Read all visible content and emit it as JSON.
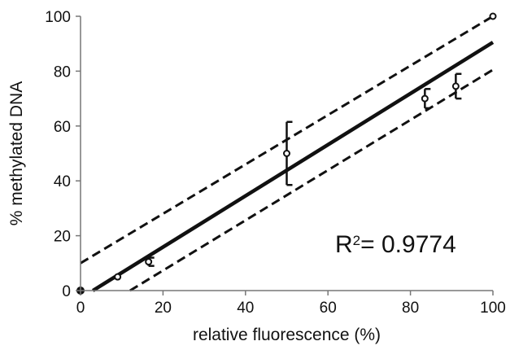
{
  "chart_data": {
    "type": "scatter",
    "title": "",
    "xlabel": "relative fluorescence (%)",
    "ylabel": "% methylated DNA",
    "xlim": [
      0,
      100
    ],
    "ylim": [
      0,
      100
    ],
    "x_ticks": [
      "0",
      "20",
      "40",
      "60",
      "80",
      "100"
    ],
    "y_ticks": [
      "0",
      "20",
      "40",
      "60",
      "80",
      "100"
    ],
    "grid": false,
    "points": [
      {
        "x": 0,
        "y": 0,
        "err_low": 0,
        "err_high": 0
      },
      {
        "x": 9,
        "y": 5,
        "err_low": 0,
        "err_high": 0
      },
      {
        "x": 16.5,
        "y": 10.5,
        "err_low": 1.5,
        "err_high": 1.5
      },
      {
        "x": 50,
        "y": 50,
        "err_low": 11.5,
        "err_high": 11.5
      },
      {
        "x": 83.5,
        "y": 70,
        "err_low": 3.5,
        "err_high": 3.5
      },
      {
        "x": 91,
        "y": 74.5,
        "err_low": 4.5,
        "err_high": 4.5
      },
      {
        "x": 100,
        "y": 100,
        "err_low": 0,
        "err_high": 0
      }
    ],
    "fit_line": {
      "x": [
        3,
        100
      ],
      "y": [
        0,
        90.5
      ]
    },
    "confidence_bands": [
      {
        "x": [
          0,
          100
        ],
        "y": [
          10,
          100
        ]
      },
      {
        "x": [
          12,
          100
        ],
        "y": [
          0,
          80.5
        ]
      }
    ],
    "annotation": {
      "text": "R",
      "superscript": "2",
      "value": "= 0.9774"
    }
  }
}
